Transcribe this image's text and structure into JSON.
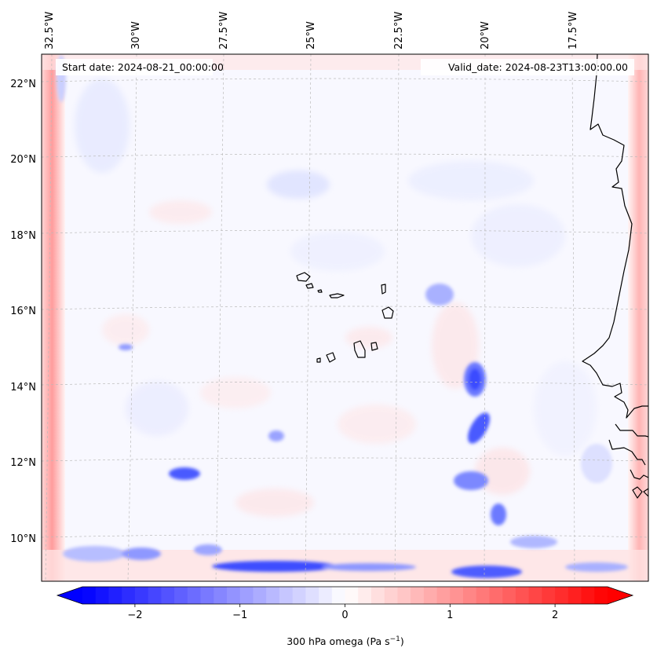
{
  "map": {
    "start_date_label": "Start date: 2024-08-21_00:00:00",
    "valid_date_label": "Valid_date: 2024-08-23T13:00:00.00",
    "longitude_labels": [
      "32.5°W",
      "30°W",
      "27.5°W",
      "25°W",
      "22.5°W",
      "20°W",
      "17.5°W"
    ],
    "latitude_labels": [
      "22°N",
      "20°N",
      "18°N",
      "16°N",
      "14°N",
      "12°N",
      "10°N"
    ],
    "field": "300 hPa omega",
    "colormap": "bwr",
    "colors": {
      "negative": "#0000ff",
      "zero": "#ffffff",
      "positive": "#ff0000",
      "coastline": "#000000",
      "gridline": "#bbbbbb",
      "background_tint": "#f8f8ff"
    }
  },
  "colorbar": {
    "ticks": [
      "−2",
      "−1",
      "0",
      "1",
      "2"
    ],
    "tick_values": [
      -2,
      -1,
      0,
      1,
      2
    ],
    "range": [
      -2.5,
      2.5
    ],
    "extend": "both",
    "label": "300 hPa omega (Pa s",
    "label_superscript": "−1",
    "label_suffix": ")"
  }
}
